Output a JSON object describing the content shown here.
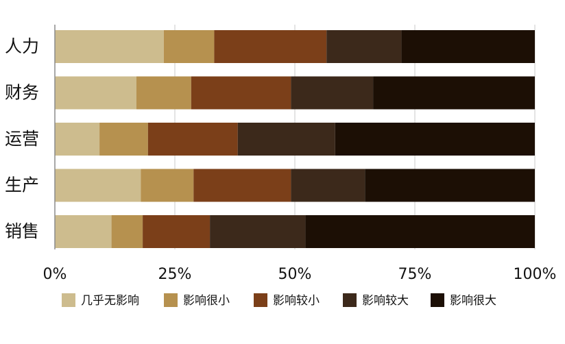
{
  "chart_data": {
    "type": "bar",
    "orientation": "horizontal",
    "stacked": true,
    "categories": [
      "人力",
      "财务",
      "运营",
      "生产",
      "销售"
    ],
    "series": [
      {
        "name": "几乎无影响",
        "color": "#cdbc8e",
        "values": [
          22.7,
          17.0,
          9.3,
          17.9,
          11.8
        ]
      },
      {
        "name": "影响很小",
        "color": "#b6914f",
        "values": [
          10.5,
          11.4,
          10.1,
          11.0,
          6.5
        ]
      },
      {
        "name": "影响较小",
        "color": "#7b3f19",
        "values": [
          23.4,
          20.8,
          18.7,
          20.3,
          14.0
        ]
      },
      {
        "name": "影响较大",
        "color": "#3c291b",
        "values": [
          15.6,
          17.1,
          20.3,
          15.4,
          19.9
        ]
      },
      {
        "name": "影响很大",
        "color": "#1c0f05",
        "values": [
          27.8,
          33.7,
          41.6,
          35.4,
          47.8
        ]
      }
    ],
    "x_ticks": [
      "0%",
      "25%",
      "50%",
      "75%",
      "100%"
    ],
    "xlim": [
      0,
      100
    ],
    "title": "",
    "xlabel": "",
    "ylabel": "",
    "grid": true,
    "legend_position": "bottom"
  }
}
